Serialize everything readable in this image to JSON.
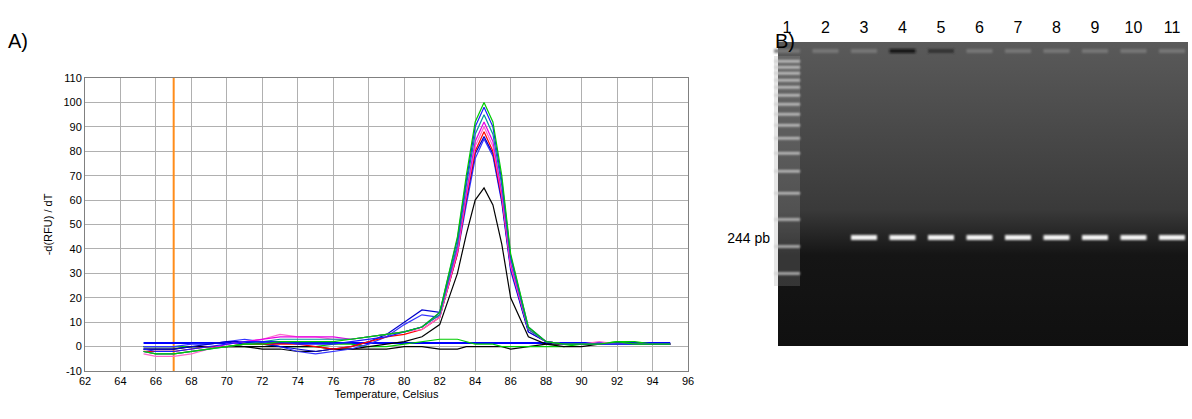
{
  "chart_data": {
    "type": "line",
    "panel_label": "A)",
    "x_label": "Temperature, Celsius",
    "y_label": "-d(RFU) / dT",
    "xlim": [
      62,
      96
    ],
    "xticks": [
      62,
      64,
      66,
      68,
      70,
      72,
      74,
      76,
      78,
      80,
      82,
      84,
      86,
      88,
      90,
      92,
      94,
      96
    ],
    "ylim": [
      -10,
      110
    ],
    "yticks": [
      -10,
      0,
      10,
      20,
      30,
      40,
      50,
      60,
      70,
      80,
      90,
      100,
      110
    ],
    "grid": true,
    "x": [
      65.3,
      66,
      67,
      68,
      69,
      70,
      71,
      72,
      73,
      74,
      75,
      76,
      77,
      78,
      79,
      80,
      81,
      82,
      83,
      83.5,
      84,
      84.5,
      85,
      85.5,
      86,
      87,
      88,
      89,
      90,
      91,
      92,
      93,
      94,
      95
    ],
    "series": [
      {
        "color": "#ff8c1a",
        "x": [
          67,
          67
        ],
        "values": [
          -10,
          110
        ]
      },
      {
        "color": "#0000ff",
        "x": [
          65.3,
          95
        ],
        "values": [
          1.5,
          1.5
        ]
      },
      {
        "color": "#000000",
        "values": [
          0,
          0,
          0,
          0,
          0,
          0,
          0,
          -1,
          -1,
          -2,
          -2,
          -1,
          -1,
          -1,
          -1,
          0,
          0,
          -1,
          -1,
          0,
          0,
          0,
          0,
          0,
          -1,
          0,
          1,
          1,
          1,
          1,
          1,
          1,
          1,
          1
        ]
      },
      {
        "color": "#00cc00",
        "values": [
          0,
          0,
          0,
          0,
          0,
          0,
          1,
          1,
          0,
          0,
          0,
          1,
          1,
          0,
          0,
          1,
          2,
          3,
          3,
          2,
          1,
          1,
          1,
          0,
          0,
          0,
          0,
          0,
          1,
          1,
          2,
          2,
          1,
          1
        ]
      },
      {
        "color": "#000000",
        "values": [
          -1,
          -1,
          -1,
          0,
          0,
          0,
          0,
          0,
          0,
          0,
          0,
          -1,
          -1,
          0,
          1,
          2,
          4,
          9,
          30,
          46,
          60,
          65,
          58,
          42,
          20,
          4,
          1,
          0,
          0,
          1,
          1,
          1,
          1,
          1
        ]
      },
      {
        "color": "#3333ff",
        "values": [
          0,
          0,
          0,
          1,
          1,
          2,
          3,
          2,
          0,
          -2,
          -3,
          -2,
          -1,
          1,
          4,
          9,
          13,
          12,
          38,
          58,
          77,
          85,
          78,
          59,
          31,
          6,
          2,
          1,
          1,
          1,
          1,
          1,
          1,
          1
        ]
      },
      {
        "color": "#0000cc",
        "values": [
          -1,
          -1,
          -1,
          0,
          1,
          2,
          2,
          1,
          0,
          -1,
          -2,
          -1,
          0,
          2,
          5,
          10,
          15,
          14,
          40,
          60,
          79,
          86,
          79,
          60,
          32,
          6,
          2,
          1,
          1,
          1,
          1,
          1,
          1,
          1
        ]
      },
      {
        "color": "#ff0000",
        "values": [
          -2,
          -2,
          -2,
          -1,
          0,
          0,
          1,
          1,
          1,
          1,
          0,
          -1,
          0,
          2,
          4,
          5,
          7,
          12,
          38,
          61,
          80,
          88,
          80,
          61,
          33,
          7,
          2,
          1,
          1,
          1,
          1,
          1,
          1,
          1
        ]
      },
      {
        "color": "#ff66cc",
        "values": [
          -3,
          -4,
          -4,
          -3,
          -1,
          1,
          2,
          3,
          5,
          4,
          4,
          3,
          3,
          4,
          5,
          6,
          7,
          12,
          39,
          62,
          82,
          90,
          82,
          62,
          33,
          7,
          2,
          1,
          1,
          2,
          1,
          1,
          1,
          1
        ]
      },
      {
        "color": "#e600e6",
        "values": [
          -2,
          -3,
          -3,
          -2,
          -1,
          1,
          2,
          3,
          4,
          4,
          4,
          4,
          3,
          4,
          5,
          6,
          8,
          13,
          40,
          63,
          84,
          92,
          84,
          63,
          34,
          7,
          2,
          1,
          1,
          1,
          1,
          1,
          1,
          1
        ]
      },
      {
        "color": "#009999",
        "values": [
          -2,
          -3,
          -3,
          -2,
          -1,
          0,
          1,
          2,
          3,
          3,
          3,
          3,
          3,
          4,
          5,
          6,
          8,
          13,
          42,
          66,
          87,
          95,
          87,
          66,
          36,
          7,
          2,
          1,
          1,
          1,
          1,
          1,
          1,
          1
        ]
      },
      {
        "color": "#1a1aff",
        "values": [
          -1,
          -2,
          -2,
          -1,
          0,
          1,
          2,
          2,
          2,
          1,
          1,
          1,
          2,
          3,
          4,
          6,
          8,
          14,
          44,
          68,
          90,
          98,
          90,
          68,
          37,
          8,
          2,
          1,
          1,
          1,
          1,
          1,
          1,
          1
        ]
      },
      {
        "color": "#00cc00",
        "values": [
          -2,
          -3,
          -3,
          -2,
          -1,
          0,
          1,
          1,
          2,
          2,
          2,
          2,
          3,
          4,
          5,
          6,
          8,
          14,
          45,
          70,
          92,
          100,
          92,
          70,
          38,
          8,
          2,
          1,
          1,
          1,
          2,
          1,
          1,
          1
        ]
      }
    ]
  },
  "gel": {
    "panel_label": "B)",
    "lanes": [
      1,
      2,
      3,
      4,
      5,
      6,
      7,
      8,
      9,
      10,
      11
    ],
    "ladder_lane": 1,
    "band_lanes": [
      3,
      4,
      5,
      6,
      7,
      8,
      9,
      10,
      11
    ],
    "bright_wells": [
      4,
      5
    ],
    "size_label": "244 pb"
  }
}
